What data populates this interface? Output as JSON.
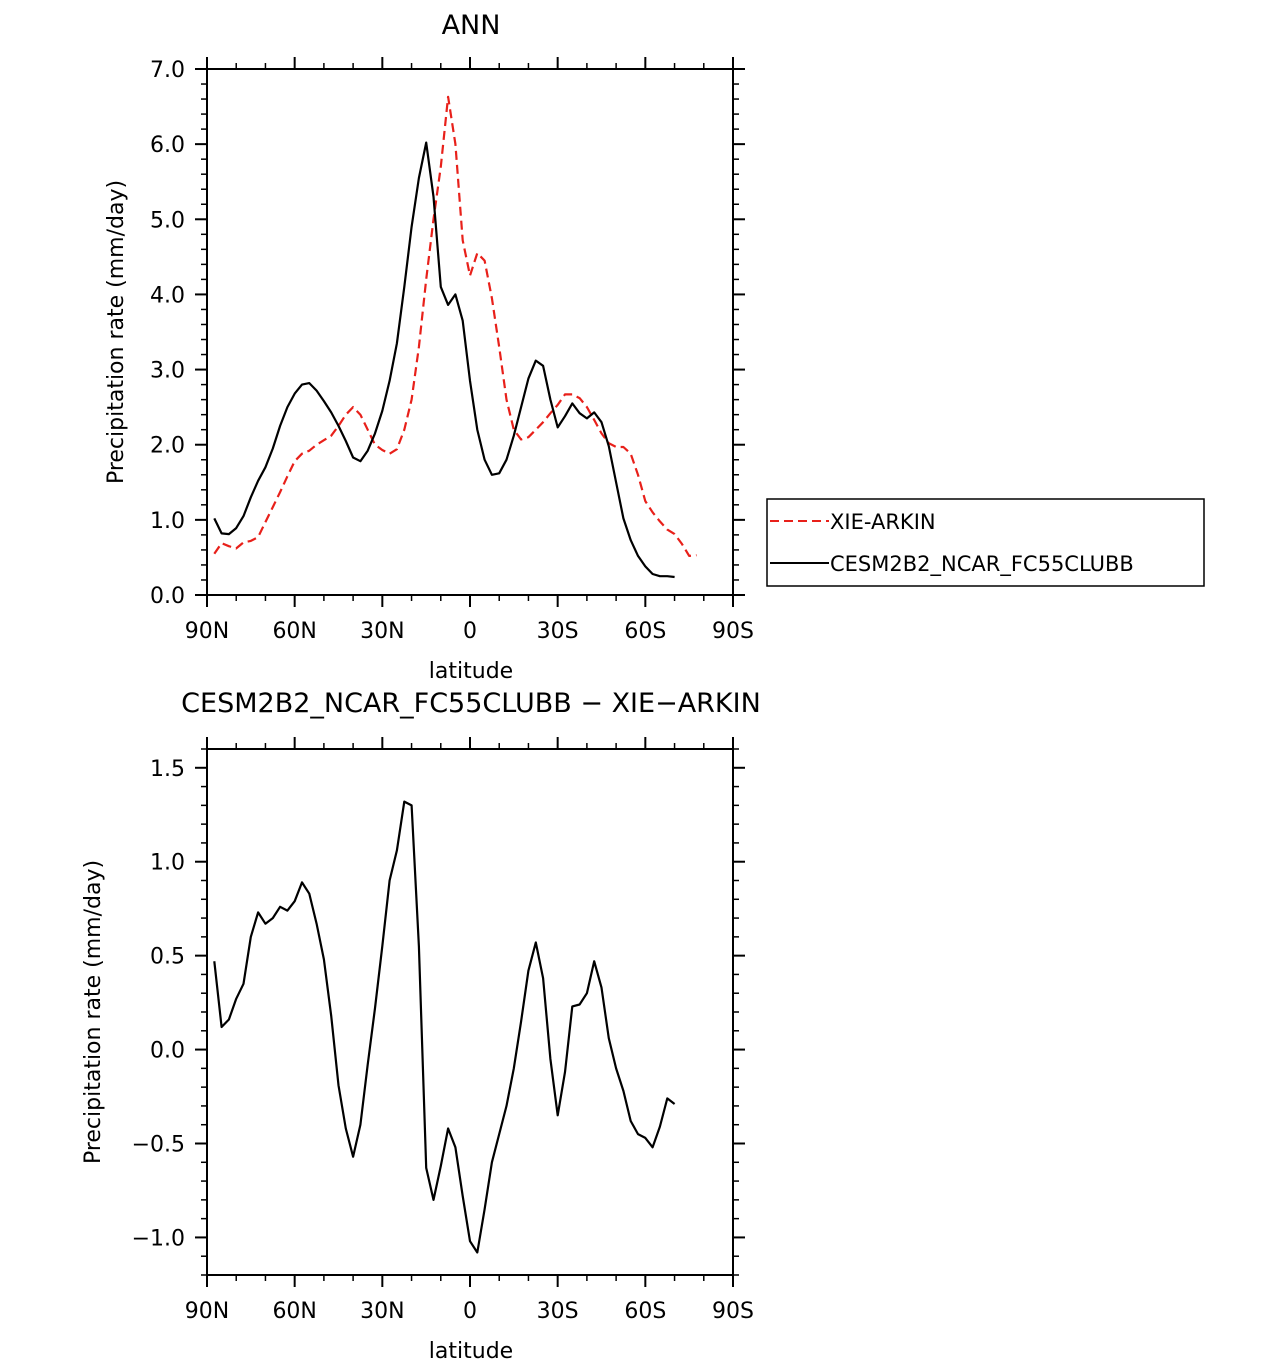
{
  "chart_data": [
    {
      "type": "line",
      "title": "ANN",
      "xlabel": "latitude",
      "ylabel": "Precipitation rate (mm/day)",
      "xlim": [
        90,
        -90
      ],
      "ylim": [
        0,
        7
      ],
      "xticks": [
        {
          "value": 90,
          "label": "90N"
        },
        {
          "value": 60,
          "label": "60N"
        },
        {
          "value": 30,
          "label": "30N"
        },
        {
          "value": 0,
          "label": "0"
        },
        {
          "value": -30,
          "label": "30S"
        },
        {
          "value": -60,
          "label": "60S"
        },
        {
          "value": -90,
          "label": "90S"
        }
      ],
      "yticks": [
        {
          "value": 0,
          "label": "0.0"
        },
        {
          "value": 1,
          "label": "1.0"
        },
        {
          "value": 2,
          "label": "2.0"
        },
        {
          "value": 3,
          "label": "3.0"
        },
        {
          "value": 4,
          "label": "4.0"
        },
        {
          "value": 5,
          "label": "5.0"
        },
        {
          "value": 6,
          "label": "6.0"
        },
        {
          "value": 7,
          "label": "7.0"
        }
      ],
      "legend_position": "right",
      "series": [
        {
          "name": "XIE-ARKIN",
          "color": "#e8201a",
          "dash": "dashed",
          "points": [
            [
              87.5,
              0.55
            ],
            [
              85,
              0.69
            ],
            [
              82.5,
              0.65
            ],
            [
              80,
              0.62
            ],
            [
              77.5,
              0.7
            ],
            [
              75,
              0.72
            ],
            [
              72.5,
              0.77
            ],
            [
              70,
              0.97
            ],
            [
              67.5,
              1.17
            ],
            [
              65,
              1.37
            ],
            [
              62.5,
              1.58
            ],
            [
              60,
              1.78
            ],
            [
              57.5,
              1.88
            ],
            [
              55,
              1.92
            ],
            [
              52.5,
              2.0
            ],
            [
              50,
              2.06
            ],
            [
              47.5,
              2.12
            ],
            [
              45,
              2.25
            ],
            [
              42.5,
              2.4
            ],
            [
              40,
              2.5
            ],
            [
              37.5,
              2.4
            ],
            [
              35,
              2.2
            ],
            [
              32.5,
              2.0
            ],
            [
              30,
              1.93
            ],
            [
              27.5,
              1.88
            ],
            [
              25,
              1.94
            ],
            [
              22.5,
              2.2
            ],
            [
              20,
              2.6
            ],
            [
              17.5,
              3.3
            ],
            [
              15,
              4.2
            ],
            [
              12.5,
              5.0
            ],
            [
              10,
              5.7
            ],
            [
              7.5,
              6.63
            ],
            [
              5,
              6.0
            ],
            [
              2.5,
              4.72
            ],
            [
              0,
              4.25
            ],
            [
              -2.5,
              4.55
            ],
            [
              -5,
              4.45
            ],
            [
              -7.5,
              3.95
            ],
            [
              -10,
              3.3
            ],
            [
              -12.5,
              2.6
            ],
            [
              -15,
              2.2
            ],
            [
              -17.5,
              2.07
            ],
            [
              -20,
              2.1
            ],
            [
              -22.5,
              2.2
            ],
            [
              -25,
              2.3
            ],
            [
              -27.5,
              2.42
            ],
            [
              -30,
              2.53
            ],
            [
              -32.5,
              2.67
            ],
            [
              -35,
              2.67
            ],
            [
              -37.5,
              2.62
            ],
            [
              -40,
              2.5
            ],
            [
              -42.5,
              2.33
            ],
            [
              -45,
              2.15
            ],
            [
              -47.5,
              2.02
            ],
            [
              -50,
              1.97
            ],
            [
              -52.5,
              1.97
            ],
            [
              -55,
              1.88
            ],
            [
              -57.5,
              1.6
            ],
            [
              -60,
              1.25
            ],
            [
              -62.5,
              1.1
            ],
            [
              -65,
              0.98
            ],
            [
              -67.5,
              0.87
            ],
            [
              -70,
              0.81
            ],
            [
              -72.5,
              0.68
            ],
            [
              -75,
              0.52
            ],
            [
              -77.5,
              0.53
            ]
          ]
        },
        {
          "name": "CESM2B2_NCAR_FC55CLUBB",
          "color": "#000000",
          "dash": "solid",
          "points": [
            [
              87.5,
              1.02
            ],
            [
              85,
              0.82
            ],
            [
              82.5,
              0.81
            ],
            [
              80,
              0.89
            ],
            [
              77.5,
              1.05
            ],
            [
              75,
              1.3
            ],
            [
              72.5,
              1.52
            ],
            [
              70,
              1.7
            ],
            [
              67.5,
              1.95
            ],
            [
              65,
              2.25
            ],
            [
              62.5,
              2.5
            ],
            [
              60,
              2.68
            ],
            [
              57.5,
              2.8
            ],
            [
              55,
              2.82
            ],
            [
              52.5,
              2.72
            ],
            [
              50,
              2.58
            ],
            [
              47.5,
              2.43
            ],
            [
              45,
              2.25
            ],
            [
              42.5,
              2.05
            ],
            [
              40,
              1.83
            ],
            [
              37.5,
              1.78
            ],
            [
              35,
              1.92
            ],
            [
              32.5,
              2.15
            ],
            [
              30,
              2.45
            ],
            [
              27.5,
              2.85
            ],
            [
              25,
              3.35
            ],
            [
              22.5,
              4.1
            ],
            [
              20,
              4.9
            ],
            [
              17.5,
              5.55
            ],
            [
              15,
              6.02
            ],
            [
              12.5,
              5.3
            ],
            [
              10,
              4.1
            ],
            [
              7.5,
              3.86
            ],
            [
              5,
              4.0
            ],
            [
              2.5,
              3.65
            ],
            [
              0,
              2.85
            ],
            [
              -2.5,
              2.2
            ],
            [
              -5,
              1.8
            ],
            [
              -7.5,
              1.6
            ],
            [
              -10,
              1.62
            ],
            [
              -12.5,
              1.8
            ],
            [
              -15,
              2.12
            ],
            [
              -17.5,
              2.5
            ],
            [
              -20,
              2.88
            ],
            [
              -22.5,
              3.12
            ],
            [
              -25,
              3.05
            ],
            [
              -27.5,
              2.6
            ],
            [
              -30,
              2.23
            ],
            [
              -32.5,
              2.38
            ],
            [
              -35,
              2.55
            ],
            [
              -37.5,
              2.42
            ],
            [
              -40,
              2.35
            ],
            [
              -42.5,
              2.43
            ],
            [
              -45,
              2.3
            ],
            [
              -47.5,
              1.98
            ],
            [
              -50,
              1.5
            ],
            [
              -52.5,
              1.02
            ],
            [
              -55,
              0.73
            ],
            [
              -57.5,
              0.52
            ],
            [
              -60,
              0.38
            ],
            [
              -62.5,
              0.28
            ],
            [
              -65,
              0.25
            ],
            [
              -67.5,
              0.25
            ],
            [
              -70,
              0.24
            ]
          ]
        }
      ]
    },
    {
      "type": "line",
      "title": "CESM2B2_NCAR_FC55CLUBB − XIE−ARKIN",
      "xlabel": "latitude",
      "ylabel": "Precipitation rate (mm/day)",
      "xlim": [
        90,
        -90
      ],
      "ylim": [
        -1.2,
        1.6
      ],
      "xticks": [
        {
          "value": 90,
          "label": "90N"
        },
        {
          "value": 60,
          "label": "60N"
        },
        {
          "value": 30,
          "label": "30N"
        },
        {
          "value": 0,
          "label": "0"
        },
        {
          "value": -30,
          "label": "30S"
        },
        {
          "value": -60,
          "label": "60S"
        },
        {
          "value": -90,
          "label": "90S"
        }
      ],
      "yticks": [
        {
          "value": -1.0,
          "label": "−1.0"
        },
        {
          "value": -0.5,
          "label": "−0.5"
        },
        {
          "value": 0.0,
          "label": "0.0"
        },
        {
          "value": 0.5,
          "label": "0.5"
        },
        {
          "value": 1.0,
          "label": "1.0"
        },
        {
          "value": 1.5,
          "label": "1.5"
        }
      ],
      "series": [
        {
          "color": "#000000",
          "dash": "solid",
          "points": [
            [
              87.5,
              0.47
            ],
            [
              85,
              0.12
            ],
            [
              82.5,
              0.16
            ],
            [
              80,
              0.27
            ],
            [
              77.5,
              0.35
            ],
            [
              75,
              0.6
            ],
            [
              72.5,
              0.73
            ],
            [
              70,
              0.67
            ],
            [
              67.5,
              0.7
            ],
            [
              65,
              0.76
            ],
            [
              62.5,
              0.74
            ],
            [
              60,
              0.79
            ],
            [
              57.5,
              0.89
            ],
            [
              55,
              0.83
            ],
            [
              52.5,
              0.67
            ],
            [
              50,
              0.48
            ],
            [
              47.5,
              0.18
            ],
            [
              45,
              -0.19
            ],
            [
              42.5,
              -0.42
            ],
            [
              40,
              -0.57
            ],
            [
              37.5,
              -0.4
            ],
            [
              35,
              -0.08
            ],
            [
              32.5,
              0.22
            ],
            [
              30,
              0.55
            ],
            [
              27.5,
              0.9
            ],
            [
              25,
              1.06
            ],
            [
              22.5,
              1.32
            ],
            [
              20,
              1.3
            ],
            [
              17.5,
              0.55
            ],
            [
              15,
              -0.63
            ],
            [
              12.5,
              -0.8
            ],
            [
              10,
              -0.62
            ],
            [
              7.5,
              -0.42
            ],
            [
              5,
              -0.52
            ],
            [
              2.5,
              -0.78
            ],
            [
              0,
              -1.02
            ],
            [
              -2.5,
              -1.08
            ],
            [
              -5,
              -0.85
            ],
            [
              -7.5,
              -0.6
            ],
            [
              -10,
              -0.45
            ],
            [
              -12.5,
              -0.3
            ],
            [
              -15,
              -0.1
            ],
            [
              -17.5,
              0.15
            ],
            [
              -20,
              0.42
            ],
            [
              -22.5,
              0.57
            ],
            [
              -25,
              0.38
            ],
            [
              -27.5,
              -0.05
            ],
            [
              -30,
              -0.35
            ],
            [
              -32.5,
              -0.12
            ],
            [
              -35,
              0.23
            ],
            [
              -37.5,
              0.24
            ],
            [
              -40,
              0.3
            ],
            [
              -42.5,
              0.47
            ],
            [
              -45,
              0.33
            ],
            [
              -47.5,
              0.06
            ],
            [
              -50,
              -0.1
            ],
            [
              -52.5,
              -0.22
            ],
            [
              -55,
              -0.38
            ],
            [
              -57.5,
              -0.45
            ],
            [
              -60,
              -0.47
            ],
            [
              -62.5,
              -0.52
            ],
            [
              -65,
              -0.41
            ],
            [
              -67.5,
              -0.26
            ],
            [
              -70,
              -0.29
            ]
          ]
        }
      ]
    }
  ]
}
